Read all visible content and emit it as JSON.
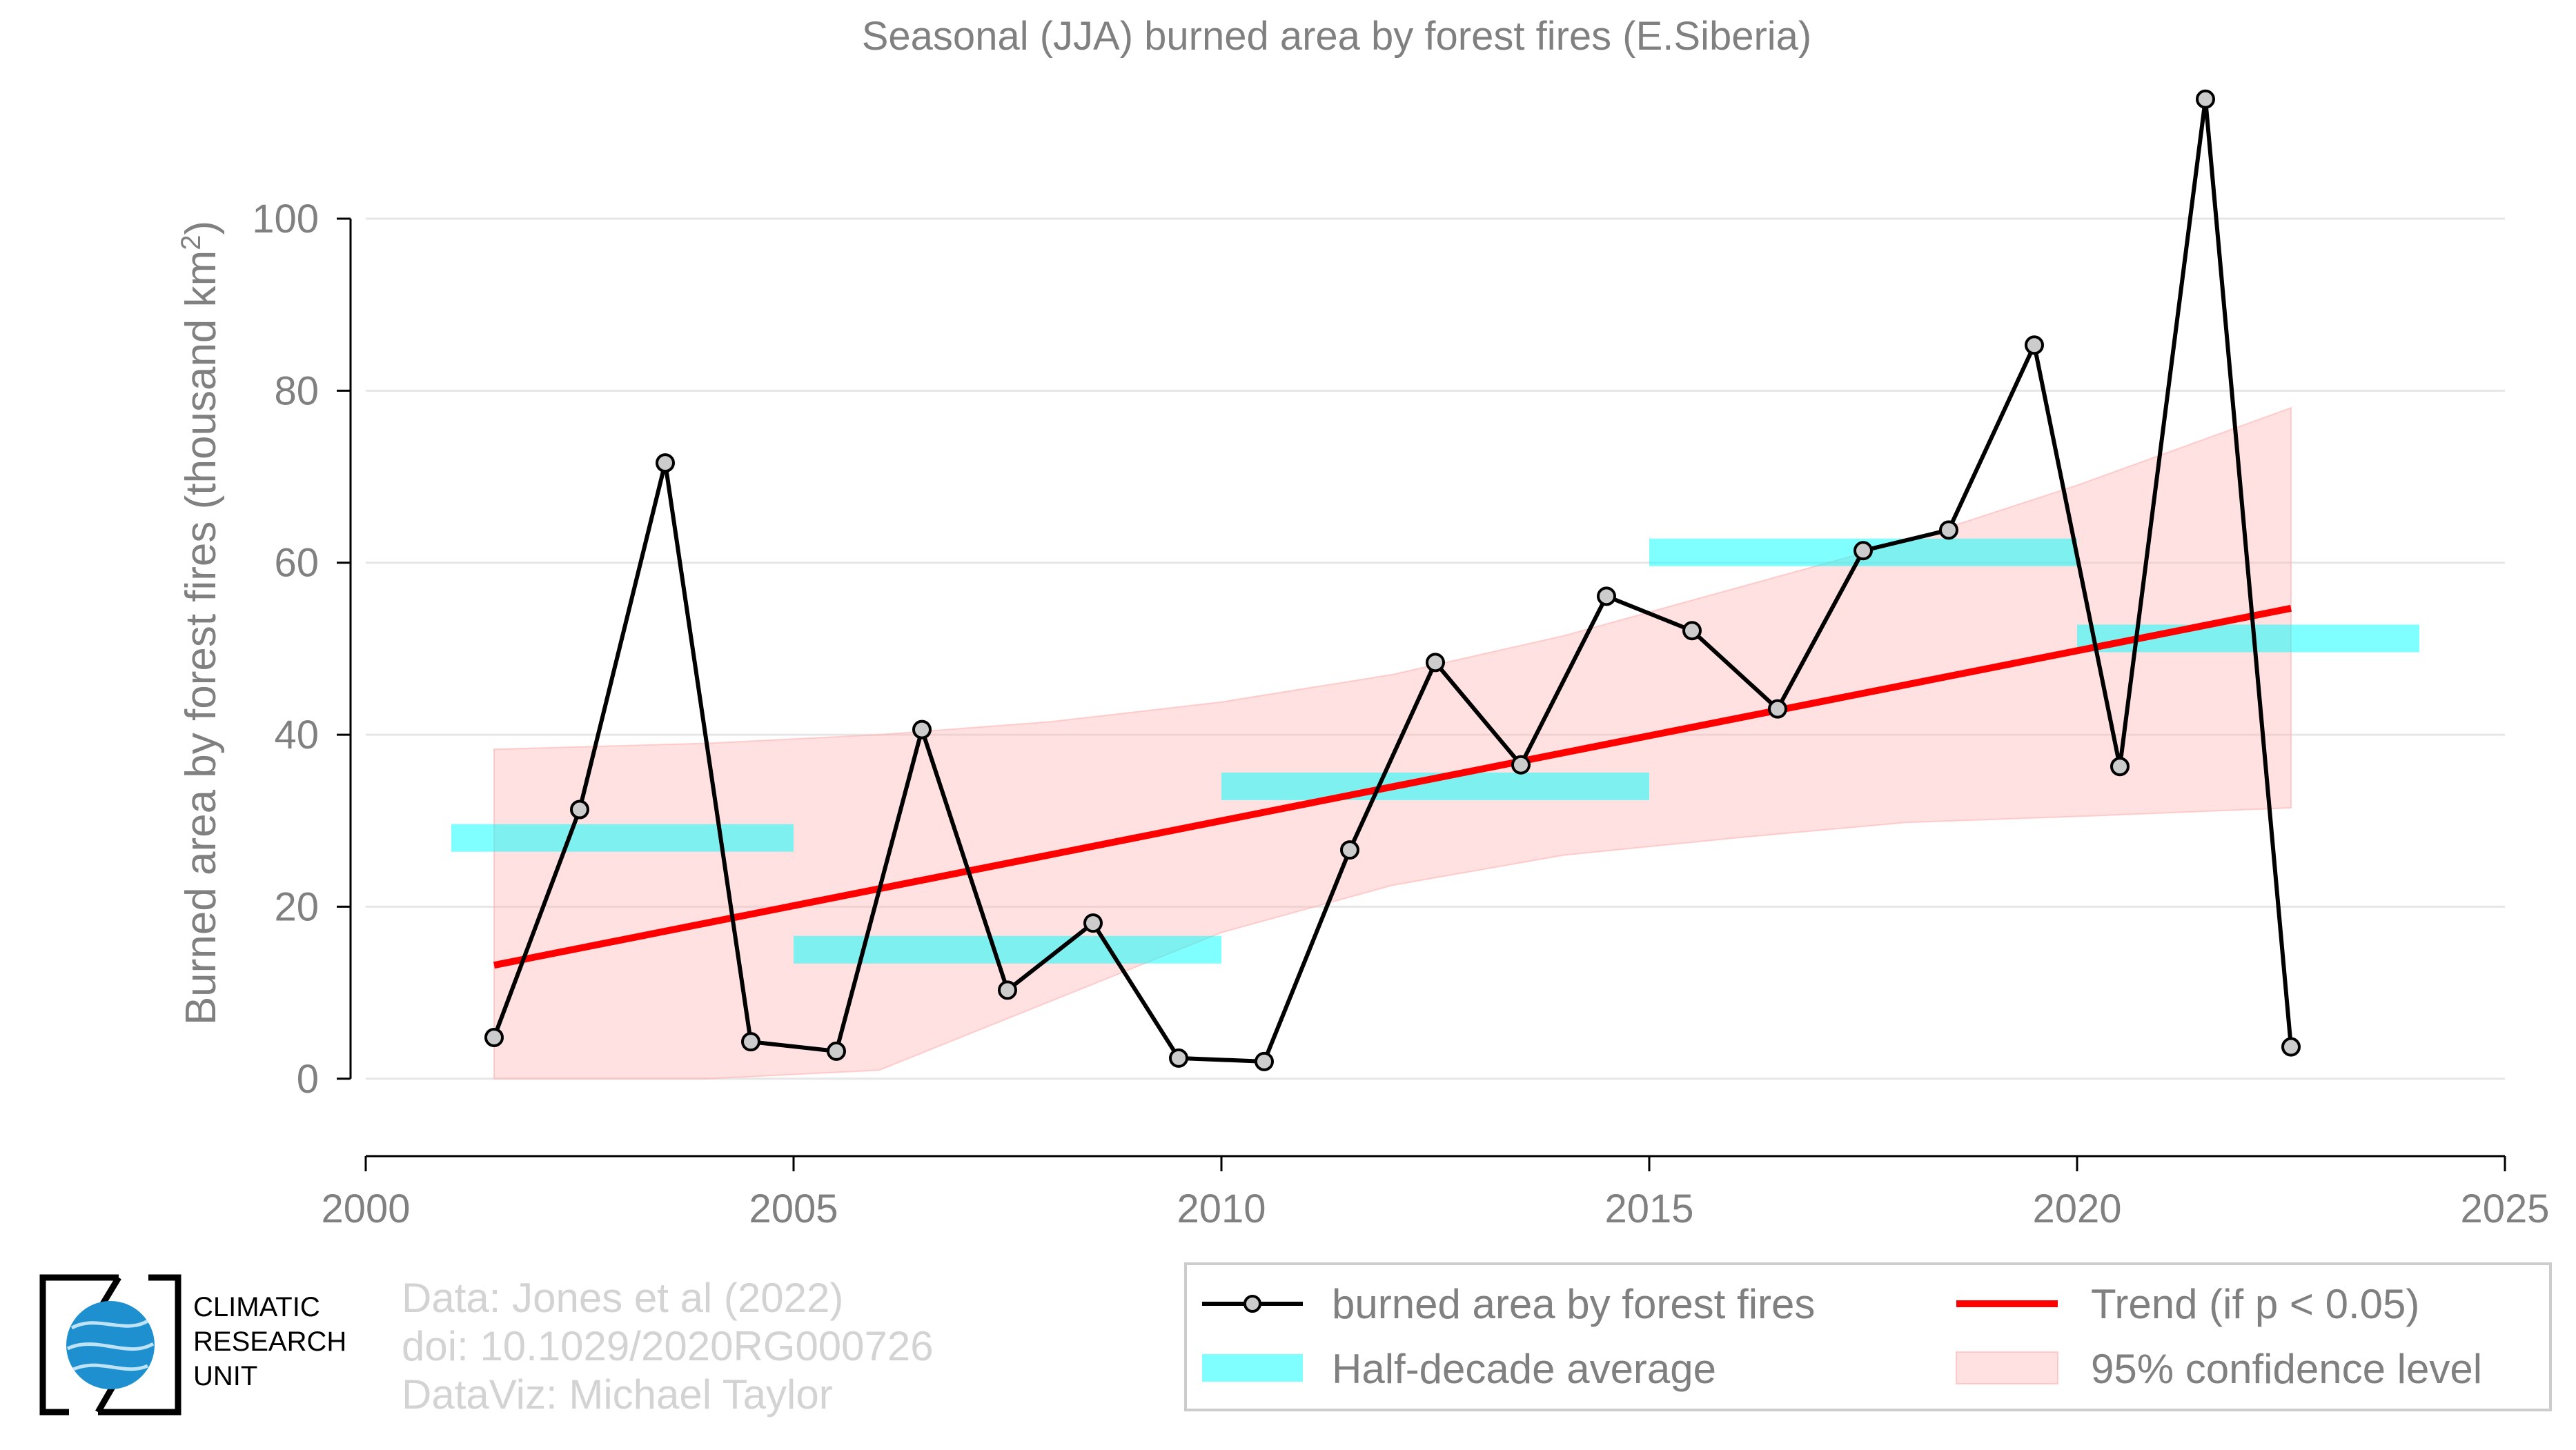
{
  "chart_data": {
    "type": "line",
    "title": "Seasonal (JJA) burned area by forest fires (E.Siberia)",
    "ylabel_prefix": "Burned area by forest fires (thousand km",
    "ylabel_sup": "2",
    "ylabel_suffix": ")",
    "xlabel": "",
    "xlim": [
      2000,
      2025
    ],
    "ylim": [
      -9,
      115
    ],
    "x_ticks": [
      "2000",
      "2005",
      "2010",
      "2015",
      "2020",
      "2025"
    ],
    "y_ticks": [
      "0",
      "20",
      "40",
      "60",
      "80",
      "100"
    ],
    "grid": "horizontal",
    "series": [
      {
        "name": "burned area by forest fires",
        "style": "line-with-markers",
        "color": "#000000",
        "marker_fill": "#cccccc",
        "x": [
          2001.5,
          2002.5,
          2003.5,
          2004.5,
          2005.5,
          2006.5,
          2007.5,
          2008.5,
          2009.5,
          2010.5,
          2011.5,
          2012.5,
          2013.5,
          2014.5,
          2015.5,
          2016.5,
          2017.5,
          2018.5,
          2019.5,
          2020.5,
          2021.5,
          2022.5
        ],
        "y": [
          4.8,
          31.3,
          71.6,
          4.3,
          3.2,
          40.6,
          10.3,
          18.1,
          2.4,
          2.0,
          26.6,
          48.4,
          36.5,
          56.1,
          52.1,
          43.0,
          61.4,
          63.8,
          85.3,
          36.3,
          113.9,
          3.7
        ]
      },
      {
        "name": "Trend (if p < 0.05)",
        "style": "line",
        "color": "#ff0000",
        "x": [
          2001.5,
          2022.5
        ],
        "y": [
          13.2,
          54.7
        ]
      },
      {
        "name": "Half-decade average",
        "style": "step-bars",
        "color": "#00ffff",
        "opacity": 0.5,
        "segments": [
          {
            "x0": 2001.0,
            "x1": 2005.0,
            "y": 28.0
          },
          {
            "x0": 2005.0,
            "x1": 2010.0,
            "y": 15.0
          },
          {
            "x0": 2010.0,
            "x1": 2015.0,
            "y": 34.0
          },
          {
            "x0": 2015.0,
            "x1": 2020.0,
            "y": 61.2
          },
          {
            "x0": 2020.0,
            "x1": 2024.0,
            "y": 51.2
          }
        ]
      },
      {
        "name": "95% confidence level",
        "style": "band",
        "color": "#ffb3b3",
        "opacity": 0.4,
        "x": [
          2001.5,
          2004.0,
          2006.0,
          2008.0,
          2010.0,
          2012.0,
          2014.0,
          2016.0,
          2018.0,
          2020.0,
          2022.5
        ],
        "upper": [
          38.3,
          39.0,
          40.0,
          41.5,
          43.8,
          47.0,
          51.5,
          57.0,
          62.5,
          69.0,
          78.0
        ],
        "lower": [
          0.0,
          0.0,
          1.0,
          9.0,
          17.0,
          22.5,
          26.0,
          28.0,
          29.8,
          30.5,
          31.5
        ]
      }
    ],
    "legend": {
      "placement": "bottom-right",
      "entries": [
        "burned area by forest fires",
        "Trend (if p < 0.05)",
        "Half-decade average",
        "95% confidence level"
      ]
    }
  },
  "logo": {
    "lines": [
      "CLIMATIC",
      "RESEARCH",
      "UNIT"
    ]
  },
  "credits": [
    "Data: Jones et al (2022)",
    "doi: 10.1029/2020RG000726",
    "DataViz: Michael Taylor"
  ],
  "colors": {
    "text": "#808080",
    "credits": "#d3d3d3",
    "grid": "#e6e6e6",
    "axis": "#000000",
    "logo_globe": "#1e90d0"
  }
}
